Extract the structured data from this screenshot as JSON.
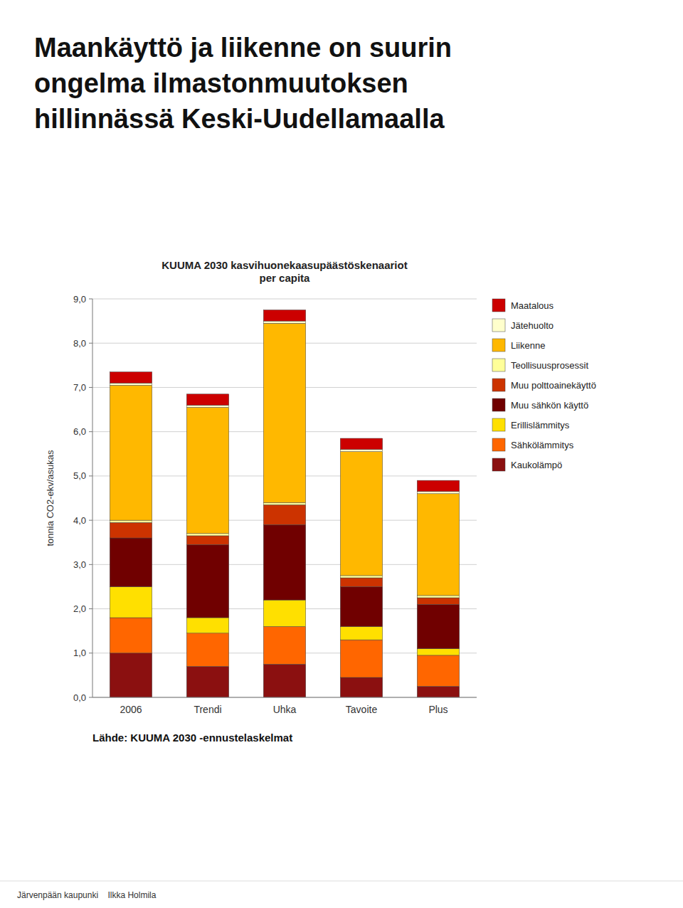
{
  "chart_data": {
    "type": "bar",
    "stacked": true,
    "title": "KUUMA 2030 kasvihuonekaasupäästöskenaariot\nper capita",
    "y_label": "tonnia CO2-ekv/asukas",
    "annotations": [
      "Maankäyttö ja liikenne on suurin",
      "ongelma ilmastonmuutoksen",
      "hillinnässä Keski-Uudellamaalla",
      "Lähde: KUUMA 2030 -ennustelaskelmat",
      "Järvenpään kaupunki    Ilkka Holmila"
    ],
    "categories": [
      "2006",
      "Trendi",
      "Uhka",
      "Tavoite",
      "Plus"
    ],
    "series": [
      {
        "name": "Kaukolämpö",
        "color": "#8B1010",
        "values": [
          1.0,
          0.7,
          0.75,
          0.45,
          0.25
        ]
      },
      {
        "name": "Sähkölämmitys",
        "color": "#FF6600",
        "values": [
          0.8,
          0.75,
          0.85,
          0.85,
          0.7
        ]
      },
      {
        "name": "Erillislämmitys",
        "color": "#FFE000",
        "values": [
          0.7,
          0.35,
          0.6,
          0.3,
          0.15
        ]
      },
      {
        "name": "Muu sähkön käyttö",
        "color": "#700000",
        "values": [
          1.1,
          1.65,
          1.7,
          0.9,
          1.0
        ]
      },
      {
        "name": "Muu polttoainekäyttö",
        "color": "#CC3300",
        "values": [
          0.35,
          0.2,
          0.45,
          0.2,
          0.15
        ]
      },
      {
        "name": "Teollisuusprosessit",
        "color": "#FFFF99",
        "values": [
          0.05,
          0.05,
          0.05,
          0.05,
          0.05
        ]
      },
      {
        "name": "Liikenne",
        "color": "#FFB800",
        "values": [
          3.05,
          2.85,
          4.05,
          2.8,
          2.3
        ]
      },
      {
        "name": "Jätehuolto",
        "color": "#FFFFCC",
        "values": [
          0.05,
          0.05,
          0.05,
          0.05,
          0.05
        ]
      },
      {
        "name": "Maatalous",
        "color": "#CC0000",
        "values": [
          0.25,
          0.25,
          0.25,
          0.25,
          0.25
        ]
      }
    ],
    "ylim": [
      0,
      9.0
    ],
    "yticks": [
      {
        "value": 0.0,
        "label": "0,0"
      },
      {
        "value": 1.0,
        "label": "1,0"
      },
      {
        "value": 2.0,
        "label": "2,0"
      },
      {
        "value": 3.0,
        "label": "3,0"
      },
      {
        "value": 4.0,
        "label": "4,0"
      },
      {
        "value": 5.0,
        "label": "5,0"
      },
      {
        "value": 6.0,
        "label": "6,0"
      },
      {
        "value": 7.0,
        "label": "7,0"
      },
      {
        "value": 8.0,
        "label": "8,0"
      },
      {
        "value": 9.0,
        "label": "9,0"
      }
    ],
    "grid": true,
    "legend": "right"
  }
}
